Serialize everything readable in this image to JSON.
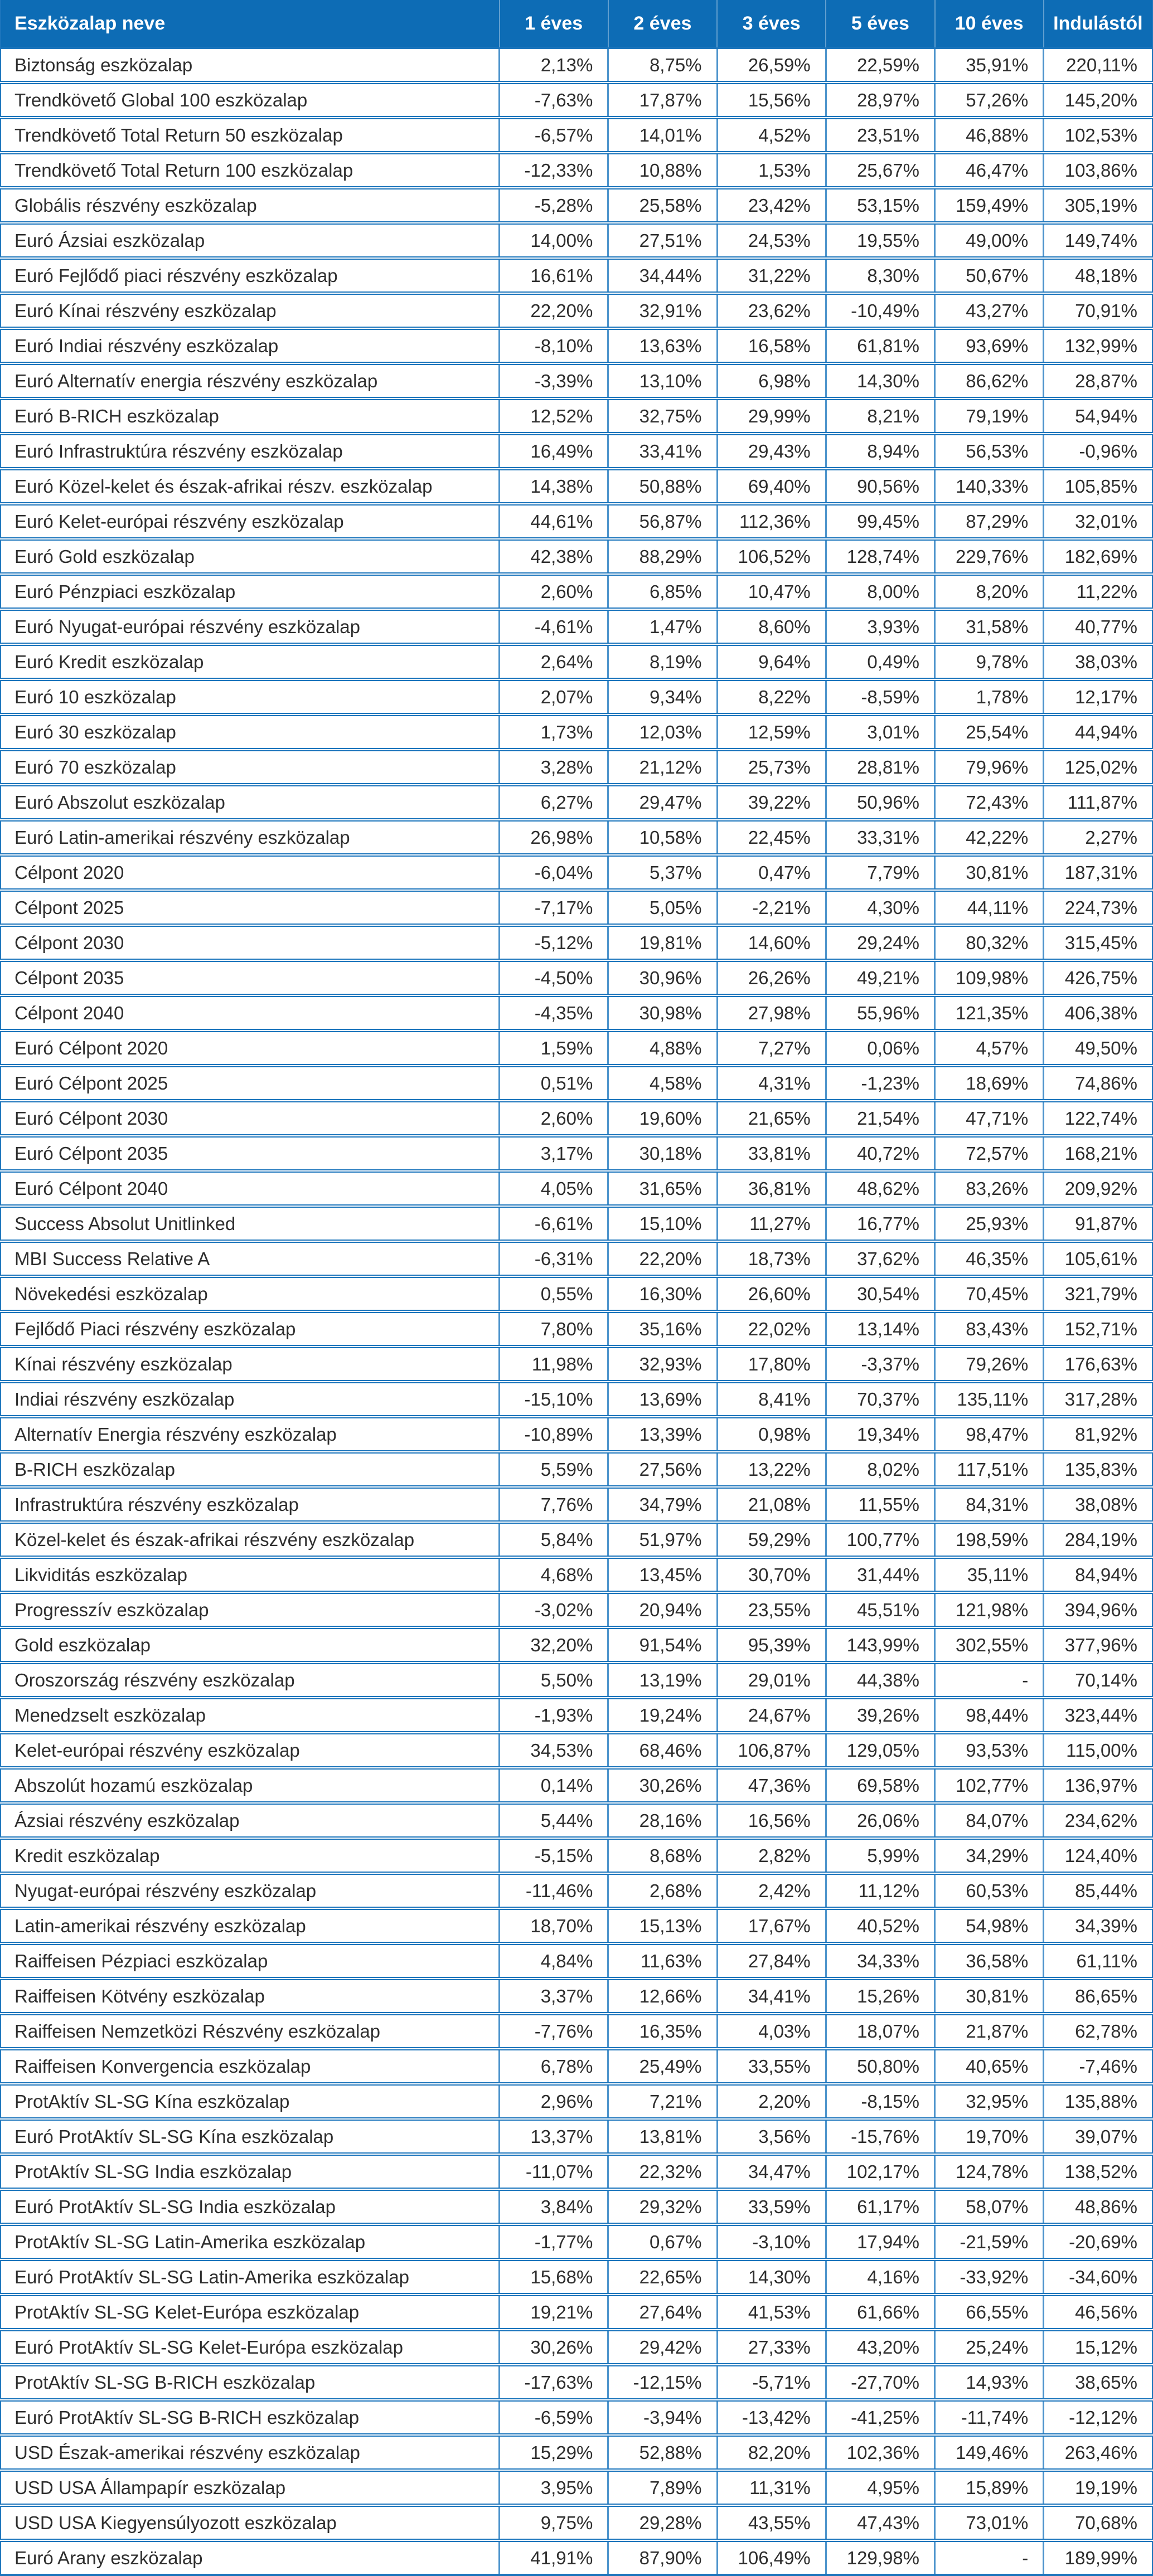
{
  "colors": {
    "header_bg": "#0d6cb5",
    "header_text": "#ffffff",
    "grid_line": "#1c75bc",
    "body_text": "#2e2e2e",
    "row_bg": "#ffffff"
  },
  "table": {
    "columns": [
      "Eszközalap neve",
      "1 éves",
      "2 éves",
      "3 éves",
      "5 éves",
      "10 éves",
      "Indulástól"
    ],
    "rows": [
      {
        "name": "Biztonság eszközalap",
        "values": [
          "2,13%",
          "8,75%",
          "26,59%",
          "22,59%",
          "35,91%",
          "220,11%"
        ]
      },
      {
        "name": "Trendkövető Global 100 eszközalap",
        "values": [
          "-7,63%",
          "17,87%",
          "15,56%",
          "28,97%",
          "57,26%",
          "145,20%"
        ]
      },
      {
        "name": "Trendkövető Total Return 50 eszközalap",
        "values": [
          "-6,57%",
          "14,01%",
          "4,52%",
          "23,51%",
          "46,88%",
          "102,53%"
        ]
      },
      {
        "name": "Trendkövető Total Return 100 eszközalap",
        "values": [
          "-12,33%",
          "10,88%",
          "1,53%",
          "25,67%",
          "46,47%",
          "103,86%"
        ]
      },
      {
        "name": "Globális részvény eszközalap",
        "values": [
          "-5,28%",
          "25,58%",
          "23,42%",
          "53,15%",
          "159,49%",
          "305,19%"
        ]
      },
      {
        "name": "Euró Ázsiai eszközalap",
        "values": [
          "14,00%",
          "27,51%",
          "24,53%",
          "19,55%",
          "49,00%",
          "149,74%"
        ]
      },
      {
        "name": "Euró Fejlődő piaci részvény eszközalap",
        "values": [
          "16,61%",
          "34,44%",
          "31,22%",
          "8,30%",
          "50,67%",
          "48,18%"
        ]
      },
      {
        "name": "Euró Kínai részvény eszközalap",
        "values": [
          "22,20%",
          "32,91%",
          "23,62%",
          "-10,49%",
          "43,27%",
          "70,91%"
        ]
      },
      {
        "name": "Euró Indiai részvény eszközalap",
        "values": [
          "-8,10%",
          "13,63%",
          "16,58%",
          "61,81%",
          "93,69%",
          "132,99%"
        ]
      },
      {
        "name": "Euró Alternatív energia részvény eszközalap",
        "values": [
          "-3,39%",
          "13,10%",
          "6,98%",
          "14,30%",
          "86,62%",
          "28,87%"
        ]
      },
      {
        "name": "Euró B-RICH eszközalap",
        "values": [
          "12,52%",
          "32,75%",
          "29,99%",
          "8,21%",
          "79,19%",
          "54,94%"
        ]
      },
      {
        "name": "Euró Infrastruktúra részvény eszközalap",
        "values": [
          "16,49%",
          "33,41%",
          "29,43%",
          "8,94%",
          "56,53%",
          "-0,96%"
        ]
      },
      {
        "name": "Euró Közel-kelet és észak-afrikai részv. eszközalap",
        "values": [
          "14,38%",
          "50,88%",
          "69,40%",
          "90,56%",
          "140,33%",
          "105,85%"
        ]
      },
      {
        "name": "Euró Kelet-európai részvény eszközalap",
        "values": [
          "44,61%",
          "56,87%",
          "112,36%",
          "99,45%",
          "87,29%",
          "32,01%"
        ]
      },
      {
        "name": "Euró Gold eszközalap",
        "values": [
          "42,38%",
          "88,29%",
          "106,52%",
          "128,74%",
          "229,76%",
          "182,69%"
        ]
      },
      {
        "name": "Euró Pénzpiaci eszközalap",
        "values": [
          "2,60%",
          "6,85%",
          "10,47%",
          "8,00%",
          "8,20%",
          "11,22%"
        ]
      },
      {
        "name": "Euró Nyugat-európai részvény eszközalap",
        "values": [
          "-4,61%",
          "1,47%",
          "8,60%",
          "3,93%",
          "31,58%",
          "40,77%"
        ]
      },
      {
        "name": "Euró Kredit eszközalap",
        "values": [
          "2,64%",
          "8,19%",
          "9,64%",
          "0,49%",
          "9,78%",
          "38,03%"
        ]
      },
      {
        "name": "Euró 10 eszközalap",
        "values": [
          "2,07%",
          "9,34%",
          "8,22%",
          "-8,59%",
          "1,78%",
          "12,17%"
        ]
      },
      {
        "name": "Euró 30 eszközalap",
        "values": [
          "1,73%",
          "12,03%",
          "12,59%",
          "3,01%",
          "25,54%",
          "44,94%"
        ]
      },
      {
        "name": "Euró 70 eszközalap",
        "values": [
          "3,28%",
          "21,12%",
          "25,73%",
          "28,81%",
          "79,96%",
          "125,02%"
        ]
      },
      {
        "name": "Euró Abszolut eszközalap",
        "values": [
          "6,27%",
          "29,47%",
          "39,22%",
          "50,96%",
          "72,43%",
          "111,87%"
        ]
      },
      {
        "name": "Euró Latin-amerikai részvény eszközalap",
        "values": [
          "26,98%",
          "10,58%",
          "22,45%",
          "33,31%",
          "42,22%",
          "2,27%"
        ]
      },
      {
        "name": "Célpont 2020",
        "values": [
          "-6,04%",
          "5,37%",
          "0,47%",
          "7,79%",
          "30,81%",
          "187,31%"
        ]
      },
      {
        "name": "Célpont 2025",
        "values": [
          "-7,17%",
          "5,05%",
          "-2,21%",
          "4,30%",
          "44,11%",
          "224,73%"
        ]
      },
      {
        "name": "Célpont 2030",
        "values": [
          "-5,12%",
          "19,81%",
          "14,60%",
          "29,24%",
          "80,32%",
          "315,45%"
        ]
      },
      {
        "name": "Célpont 2035",
        "values": [
          "-4,50%",
          "30,96%",
          "26,26%",
          "49,21%",
          "109,98%",
          "426,75%"
        ]
      },
      {
        "name": "Célpont 2040",
        "values": [
          "-4,35%",
          "30,98%",
          "27,98%",
          "55,96%",
          "121,35%",
          "406,38%"
        ]
      },
      {
        "name": "Euró Célpont 2020",
        "values": [
          "1,59%",
          "4,88%",
          "7,27%",
          "0,06%",
          "4,57%",
          "49,50%"
        ]
      },
      {
        "name": "Euró Célpont 2025",
        "values": [
          "0,51%",
          "4,58%",
          "4,31%",
          "-1,23%",
          "18,69%",
          "74,86%"
        ]
      },
      {
        "name": "Euró Célpont 2030",
        "values": [
          "2,60%",
          "19,60%",
          "21,65%",
          "21,54%",
          "47,71%",
          "122,74%"
        ]
      },
      {
        "name": "Euró Célpont 2035",
        "values": [
          "3,17%",
          "30,18%",
          "33,81%",
          "40,72%",
          "72,57%",
          "168,21%"
        ]
      },
      {
        "name": "Euró Célpont 2040",
        "values": [
          "4,05%",
          "31,65%",
          "36,81%",
          "48,62%",
          "83,26%",
          "209,92%"
        ]
      },
      {
        "name": "Success Absolut Unitlinked",
        "values": [
          "-6,61%",
          "15,10%",
          "11,27%",
          "16,77%",
          "25,93%",
          "91,87%"
        ]
      },
      {
        "name": "MBI Success Relative A",
        "values": [
          "-6,31%",
          "22,20%",
          "18,73%",
          "37,62%",
          "46,35%",
          "105,61%"
        ]
      },
      {
        "name": "Növekedési eszközalap",
        "values": [
          "0,55%",
          "16,30%",
          "26,60%",
          "30,54%",
          "70,45%",
          "321,79%"
        ]
      },
      {
        "name": "Fejlődő Piaci részvény eszközalap",
        "values": [
          "7,80%",
          "35,16%",
          "22,02%",
          "13,14%",
          "83,43%",
          "152,71%"
        ]
      },
      {
        "name": "Kínai részvény eszközalap",
        "values": [
          "11,98%",
          "32,93%",
          "17,80%",
          "-3,37%",
          "79,26%",
          "176,63%"
        ]
      },
      {
        "name": "Indiai részvény eszközalap",
        "values": [
          "-15,10%",
          "13,69%",
          "8,41%",
          "70,37%",
          "135,11%",
          "317,28%"
        ]
      },
      {
        "name": "Alternatív Energia részvény eszközalap",
        "values": [
          "-10,89%",
          "13,39%",
          "0,98%",
          "19,34%",
          "98,47%",
          "81,92%"
        ]
      },
      {
        "name": "B-RICH eszközalap",
        "values": [
          "5,59%",
          "27,56%",
          "13,22%",
          "8,02%",
          "117,51%",
          "135,83%"
        ]
      },
      {
        "name": "Infrastruktúra részvény eszközalap",
        "values": [
          "7,76%",
          "34,79%",
          "21,08%",
          "11,55%",
          "84,31%",
          "38,08%"
        ]
      },
      {
        "name": "Közel-kelet és észak-afrikai részvény eszközalap",
        "values": [
          "5,84%",
          "51,97%",
          "59,29%",
          "100,77%",
          "198,59%",
          "284,19%"
        ]
      },
      {
        "name": "Likviditás eszközalap",
        "values": [
          "4,68%",
          "13,45%",
          "30,70%",
          "31,44%",
          "35,11%",
          "84,94%"
        ]
      },
      {
        "name": "Progresszív eszközalap",
        "values": [
          "-3,02%",
          "20,94%",
          "23,55%",
          "45,51%",
          "121,98%",
          "394,96%"
        ]
      },
      {
        "name": "Gold eszközalap",
        "values": [
          "32,20%",
          "91,54%",
          "95,39%",
          "143,99%",
          "302,55%",
          "377,96%"
        ]
      },
      {
        "name": "Oroszország részvény eszközalap",
        "values": [
          "5,50%",
          "13,19%",
          "29,01%",
          "44,38%",
          "-",
          "70,14%"
        ]
      },
      {
        "name": "Menedzselt eszközalap",
        "values": [
          "-1,93%",
          "19,24%",
          "24,67%",
          "39,26%",
          "98,44%",
          "323,44%"
        ]
      },
      {
        "name": "Kelet-európai részvény eszközalap",
        "values": [
          "34,53%",
          "68,46%",
          "106,87%",
          "129,05%",
          "93,53%",
          "115,00%"
        ]
      },
      {
        "name": "Abszolút hozamú eszközalap",
        "values": [
          "0,14%",
          "30,26%",
          "47,36%",
          "69,58%",
          "102,77%",
          "136,97%"
        ]
      },
      {
        "name": "Ázsiai részvény eszközalap",
        "values": [
          "5,44%",
          "28,16%",
          "16,56%",
          "26,06%",
          "84,07%",
          "234,62%"
        ]
      },
      {
        "name": "Kredit eszközalap",
        "values": [
          "-5,15%",
          "8,68%",
          "2,82%",
          "5,99%",
          "34,29%",
          "124,40%"
        ]
      },
      {
        "name": "Nyugat-európai részvény eszközalap",
        "values": [
          "-11,46%",
          "2,68%",
          "2,42%",
          "11,12%",
          "60,53%",
          "85,44%"
        ]
      },
      {
        "name": "Latin-amerikai részvény eszközalap",
        "values": [
          "18,70%",
          "15,13%",
          "17,67%",
          "40,52%",
          "54,98%",
          "34,39%"
        ]
      },
      {
        "name": "Raiffeisen Pézpiaci eszközalap",
        "values": [
          "4,84%",
          "11,63%",
          "27,84%",
          "34,33%",
          "36,58%",
          "61,11%"
        ]
      },
      {
        "name": "Raiffeisen Kötvény eszközalap",
        "values": [
          "3,37%",
          "12,66%",
          "34,41%",
          "15,26%",
          "30,81%",
          "86,65%"
        ]
      },
      {
        "name": "Raiffeisen Nemzetközi Részvény eszközalap",
        "values": [
          "-7,76%",
          "16,35%",
          "4,03%",
          "18,07%",
          "21,87%",
          "62,78%"
        ]
      },
      {
        "name": "Raiffeisen Konvergencia eszközalap",
        "values": [
          "6,78%",
          "25,49%",
          "33,55%",
          "50,80%",
          "40,65%",
          "-7,46%"
        ]
      },
      {
        "name": "ProtAktív SL-SG Kína eszközalap",
        "values": [
          "2,96%",
          "7,21%",
          "2,20%",
          "-8,15%",
          "32,95%",
          "135,88%"
        ]
      },
      {
        "name": "Euró ProtAktív SL-SG Kína eszközalap",
        "values": [
          "13,37%",
          "13,81%",
          "3,56%",
          "-15,76%",
          "19,70%",
          "39,07%"
        ]
      },
      {
        "name": "ProtAktív SL-SG India eszközalap",
        "values": [
          "-11,07%",
          "22,32%",
          "34,47%",
          "102,17%",
          "124,78%",
          "138,52%"
        ]
      },
      {
        "name": "Euró ProtAktív SL-SG India eszközalap",
        "values": [
          "3,84%",
          "29,32%",
          "33,59%",
          "61,17%",
          "58,07%",
          "48,86%"
        ]
      },
      {
        "name": "ProtAktív SL-SG Latin-Amerika eszközalap",
        "values": [
          "-1,77%",
          "0,67%",
          "-3,10%",
          "17,94%",
          "-21,59%",
          "-20,69%"
        ]
      },
      {
        "name": "Euró ProtAktív SL-SG Latin-Amerika eszközalap",
        "values": [
          "15,68%",
          "22,65%",
          "14,30%",
          "4,16%",
          "-33,92%",
          "-34,60%"
        ]
      },
      {
        "name": "ProtAktív SL-SG Kelet-Európa eszközalap",
        "values": [
          "19,21%",
          "27,64%",
          "41,53%",
          "61,66%",
          "66,55%",
          "46,56%"
        ]
      },
      {
        "name": "Euró ProtAktív SL-SG Kelet-Európa eszközalap",
        "values": [
          "30,26%",
          "29,42%",
          "27,33%",
          "43,20%",
          "25,24%",
          "15,12%"
        ]
      },
      {
        "name": "ProtAktív SL-SG B-RICH eszközalap",
        "values": [
          "-17,63%",
          "-12,15%",
          "-5,71%",
          "-27,70%",
          "14,93%",
          "38,65%"
        ]
      },
      {
        "name": "Euró ProtAktív SL-SG B-RICH eszközalap",
        "values": [
          "-6,59%",
          "-3,94%",
          "-13,42%",
          "-41,25%",
          "-11,74%",
          "-12,12%"
        ]
      },
      {
        "name": "USD Észak-amerikai részvény eszközalap",
        "values": [
          "15,29%",
          "52,88%",
          "82,20%",
          "102,36%",
          "149,46%",
          "263,46%"
        ]
      },
      {
        "name": "USD USA Állampapír eszközalap",
        "values": [
          "3,95%",
          "7,89%",
          "11,31%",
          "4,95%",
          "15,89%",
          "19,19%"
        ]
      },
      {
        "name": "USD USA Kiegyensúlyozott eszközalap",
        "values": [
          "9,75%",
          "29,28%",
          "43,55%",
          "47,43%",
          "73,01%",
          "70,68%"
        ]
      },
      {
        "name": "Euró Arany eszközalap",
        "values": [
          "41,91%",
          "87,90%",
          "106,49%",
          "129,98%",
          "-",
          "189,99%"
        ]
      }
    ]
  }
}
